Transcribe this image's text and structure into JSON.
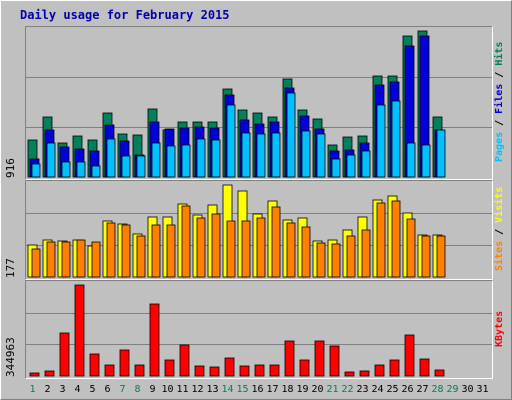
{
  "title": "Daily usage for February 2015",
  "colors": {
    "hits": "#00805c",
    "files": "#0000d8",
    "pages": "#00c0ff",
    "visits": "#ffff00",
    "sites": "#ff8000",
    "kbytes": "#ff0000",
    "weekday": "#000000",
    "weekend": "#00805c",
    "title": "#0000ad",
    "gridline": "#808080",
    "background": "#c0c0c0"
  },
  "legend": {
    "top": [
      {
        "name": "Pages",
        "color": "#00c0ff"
      },
      {
        "name": "Files",
        "color": "#0000d8"
      },
      {
        "name": "Hits",
        "color": "#00805c"
      }
    ],
    "middle": [
      {
        "name": "Sites",
        "color": "#ff8000"
      },
      {
        "name": "Visits",
        "color": "#ffff00"
      }
    ],
    "bottom": [
      {
        "name": "KBytes",
        "color": "#ff0000"
      }
    ],
    "separator": " / "
  },
  "chart_data": [
    {
      "type": "bar",
      "title": "Daily usage for February 2015",
      "ymax_label": "916",
      "ylim": [
        0,
        916
      ],
      "categories": [
        "1",
        "2",
        "3",
        "4",
        "5",
        "6",
        "7",
        "8",
        "9",
        "10",
        "11",
        "12",
        "13",
        "14",
        "15",
        "16",
        "17",
        "18",
        "19",
        "20",
        "21",
        "22",
        "23",
        "24",
        "25",
        "26",
        "27",
        "28",
        "29",
        "30",
        "31"
      ],
      "weekend_days": [
        1,
        7,
        8,
        14,
        15,
        21,
        22,
        28,
        29
      ],
      "series": [
        {
          "name": "Hits",
          "values": [
            232,
            379,
            211,
            256,
            232,
            403,
            270,
            262,
            427,
            294,
            342,
            342,
            342,
            549,
            423,
            403,
            379,
            615,
            423,
            366,
            203,
            248,
            256,
            635,
            635,
            885,
            916,
            379,
            null,
            null,
            null
          ]
        },
        {
          "name": "Files",
          "values": [
            110,
            294,
            186,
            178,
            162,
            325,
            223,
            141,
            342,
            302,
            309,
            315,
            309,
            517,
            358,
            333,
            342,
            558,
            385,
            302,
            162,
            170,
            211,
            578,
            595,
            820,
            885,
            294,
            null,
            null,
            null
          ]
        },
        {
          "name": "Pages",
          "values": [
            80,
            211,
            95,
            95,
            72,
            240,
            131,
            131,
            211,
            194,
            200,
            240,
            233,
            451,
            276,
            270,
            276,
            527,
            286,
            270,
            110,
            141,
            162,
            451,
            474,
            211,
            200,
            294,
            null,
            null,
            null
          ]
        }
      ]
    },
    {
      "type": "bar",
      "ymax_label": "177",
      "ylim": [
        0,
        177
      ],
      "categories": [
        "1",
        "2",
        "3",
        "4",
        "5",
        "6",
        "7",
        "8",
        "9",
        "10",
        "11",
        "12",
        "13",
        "14",
        "15",
        "16",
        "17",
        "18",
        "19",
        "20",
        "21",
        "22",
        "23",
        "24",
        "25",
        "26",
        "27",
        "28",
        "29",
        "30",
        "31"
      ],
      "series": [
        {
          "name": "Visits",
          "values": [
            61,
            72,
            70,
            72,
            59,
            107,
            102,
            83,
            115,
            115,
            141,
            119,
            138,
            177,
            165,
            121,
            147,
            110,
            113,
            70,
            72,
            91,
            115,
            148,
            156,
            124,
            80,
            80,
            null,
            null,
            null
          ]
        },
        {
          "name": "Sites",
          "values": [
            54,
            67,
            68,
            71,
            67,
            104,
            100,
            79,
            100,
            101,
            136,
            113,
            121,
            107,
            108,
            113,
            135,
            103,
            97,
            66,
            64,
            78,
            91,
            142,
            147,
            112,
            79,
            78,
            null,
            null,
            null
          ]
        }
      ]
    },
    {
      "type": "bar",
      "ymax_label": "344963",
      "ylim": [
        0,
        344963
      ],
      "categories": [
        "1",
        "2",
        "3",
        "4",
        "5",
        "6",
        "7",
        "8",
        "9",
        "10",
        "11",
        "12",
        "13",
        "14",
        "15",
        "16",
        "17",
        "18",
        "19",
        "20",
        "21",
        "22",
        "23",
        "24",
        "25",
        "26",
        "27",
        "28",
        "29",
        "30",
        "31"
      ],
      "series": [
        {
          "name": "KBytes",
          "values": [
            10540,
            20128,
            161930,
            344963,
            83407,
            40249,
            97827,
            43249,
            272163,
            60380,
            116500,
            36100,
            32700,
            70000,
            39300,
            40249,
            40249,
            132500,
            59280,
            132500,
            115100,
            15800,
            20128,
            42250,
            59200,
            157100,
            66140,
            24300,
            null,
            null,
            null
          ]
        }
      ]
    }
  ]
}
